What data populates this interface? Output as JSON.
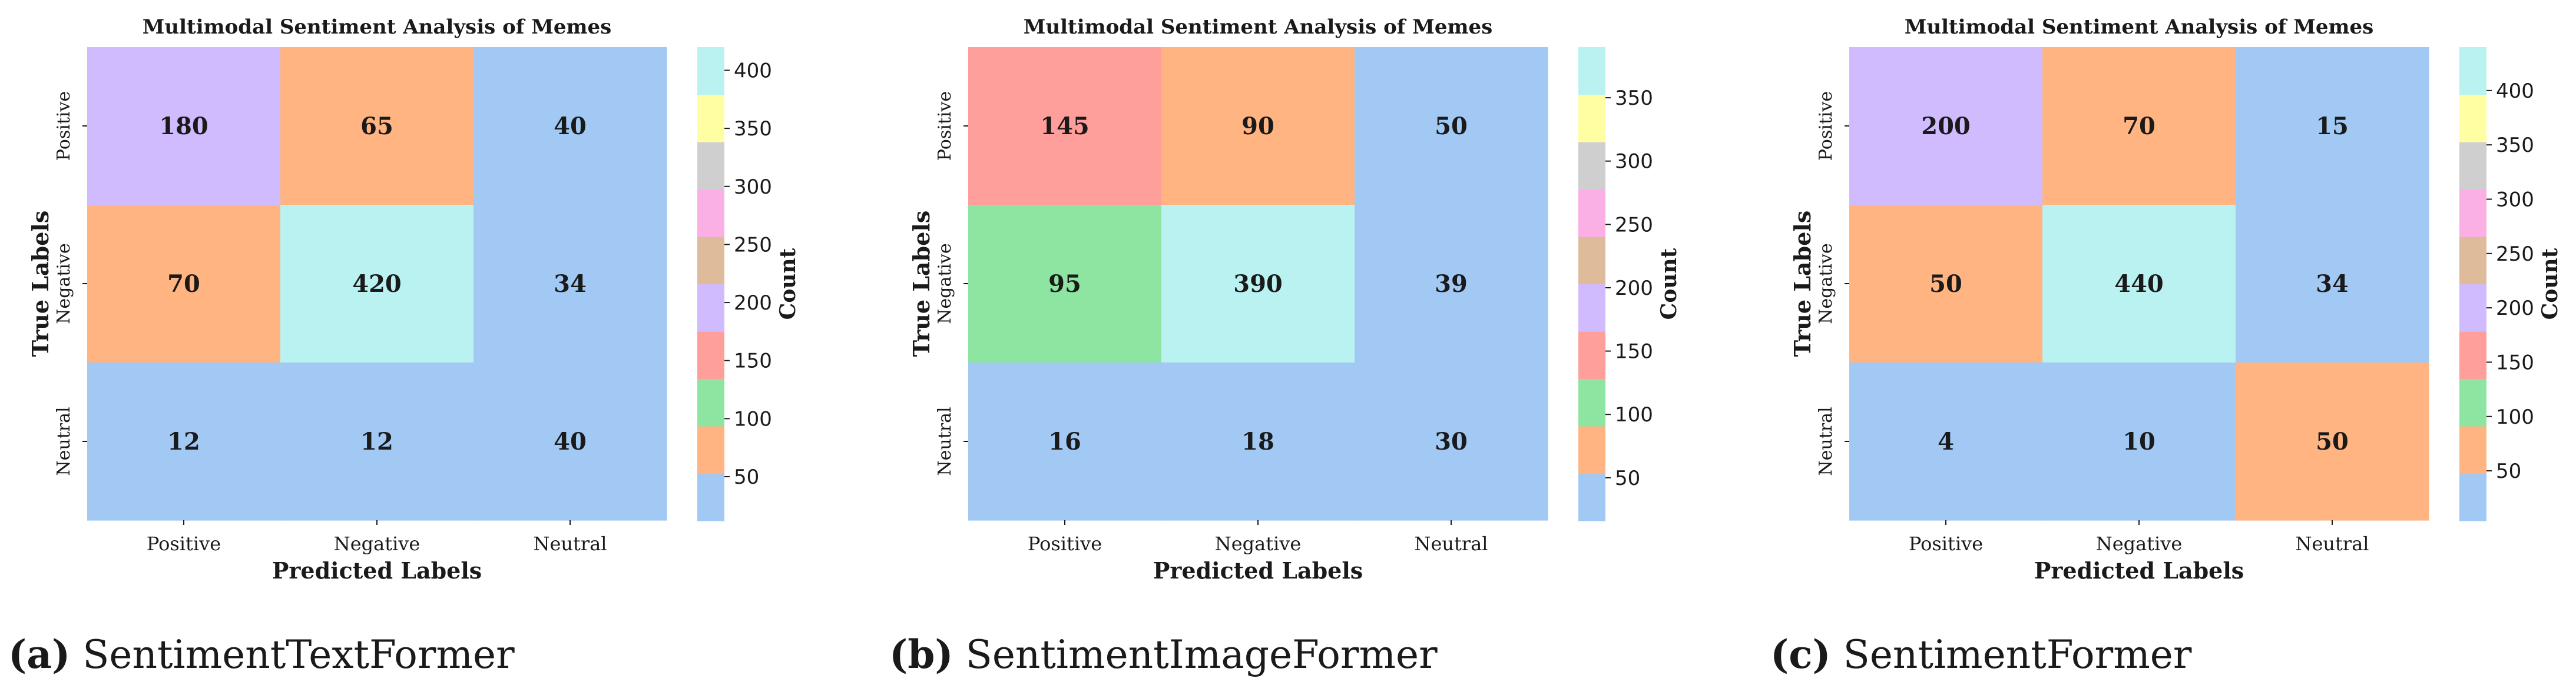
{
  "figure": {
    "panels": [
      {
        "caption_letter": "(a)",
        "caption_text": "SentimentTextFormer"
      },
      {
        "caption_letter": "(b)",
        "caption_text": "SentimentImageFormer"
      },
      {
        "caption_letter": "(c)",
        "caption_text": "SentimentFormer"
      }
    ]
  },
  "colors": {
    "bins": [
      "#a1c9f4",
      "#ffb482",
      "#8de5a1",
      "#ff9f9b",
      "#d0bbff",
      "#debb9b",
      "#fab0e4",
      "#cfcfcf",
      "#fffea3",
      "#b9f2f0"
    ],
    "text": "#1a1a1a"
  },
  "chart_data": [
    {
      "type": "heatmap",
      "title": "Multimodal Sentiment Analysis of Memes",
      "xlabel": "Predicted Labels",
      "ylabel": "True Labels",
      "x_categories": [
        "Positive",
        "Negative",
        "Neutral"
      ],
      "y_categories": [
        "Positive",
        "Negative",
        "Neutral"
      ],
      "values": [
        [
          180,
          65,
          40
        ],
        [
          70,
          420,
          34
        ],
        [
          12,
          12,
          40
        ]
      ],
      "vmin": 12,
      "vmax": 420,
      "colorbar": {
        "label": "Count",
        "ticks": [
          50,
          100,
          150,
          200,
          250,
          300,
          350,
          400
        ]
      }
    },
    {
      "type": "heatmap",
      "title": "Multimodal Sentiment Analysis of Memes",
      "xlabel": "Predicted Labels",
      "ylabel": "True Labels",
      "x_categories": [
        "Positive",
        "Negative",
        "Neutral"
      ],
      "y_categories": [
        "Positive",
        "Negative",
        "Neutral"
      ],
      "values": [
        [
          145,
          90,
          50
        ],
        [
          95,
          390,
          39
        ],
        [
          16,
          18,
          30
        ]
      ],
      "vmin": 16,
      "vmax": 390,
      "colorbar": {
        "label": "Count",
        "ticks": [
          50,
          100,
          150,
          200,
          250,
          300,
          350
        ]
      }
    },
    {
      "type": "heatmap",
      "title": "Multimodal Sentiment Analysis of Memes",
      "xlabel": "Predicted Labels",
      "ylabel": "True Labels",
      "x_categories": [
        "Positive",
        "Negative",
        "Neutral"
      ],
      "y_categories": [
        "Positive",
        "Negative",
        "Neutral"
      ],
      "values": [
        [
          200,
          70,
          15
        ],
        [
          50,
          440,
          34
        ],
        [
          4,
          10,
          50
        ]
      ],
      "vmin": 4,
      "vmax": 440,
      "colorbar": {
        "label": "Count",
        "ticks": [
          50,
          100,
          150,
          200,
          250,
          300,
          350,
          400
        ]
      }
    }
  ]
}
